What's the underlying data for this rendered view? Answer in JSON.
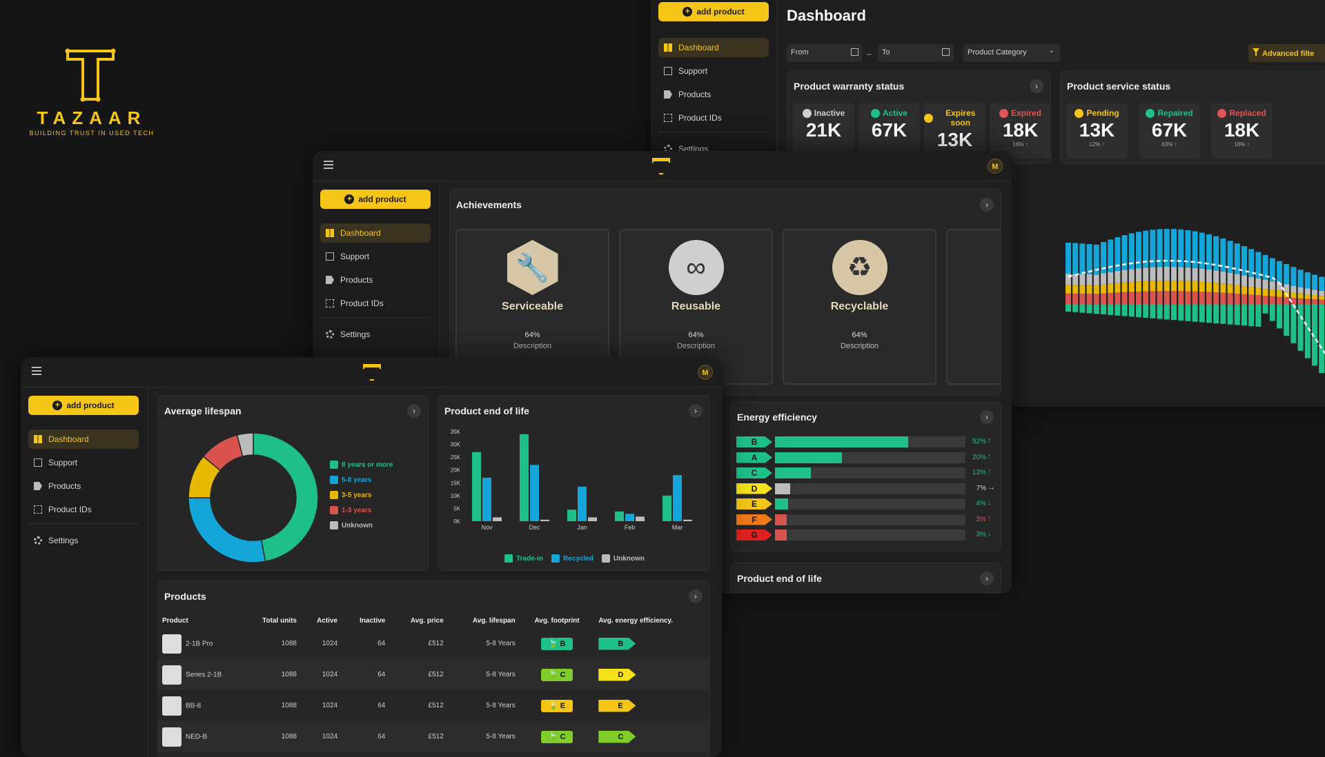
{
  "brand": {
    "name": "TAZAAR",
    "tagline": "BUILDING TRUST IN USED TECH",
    "color": "#f5c518"
  },
  "common": {
    "add_product": "add product",
    "avatar": "M",
    "nav": [
      "Dashboard",
      "Support",
      "Products",
      "Product IDs"
    ],
    "settings": "Settings"
  },
  "dash": {
    "title": "Dashboard",
    "from": "From",
    "to": "To",
    "category": "Product Category",
    "advanced": "Advanced filte"
  },
  "warranty": {
    "title": "Product warranty status",
    "stats": [
      {
        "label": "Inactive",
        "value": "21K",
        "pct": "",
        "color": "#cfcfcf"
      },
      {
        "label": "Active",
        "value": "67K",
        "pct": "",
        "color": "#1fbf8a"
      },
      {
        "label": "Expires soon",
        "value": "13K",
        "pct": "",
        "color": "#f5c518"
      },
      {
        "label": "Expired",
        "value": "18K",
        "pct": "16% ↑",
        "color": "#e05555"
      }
    ]
  },
  "service": {
    "title": "Product service status",
    "stats": [
      {
        "label": "Pending",
        "value": "13K",
        "pct": "12% ↑",
        "color": "#f5c518"
      },
      {
        "label": "Repaired",
        "value": "67K",
        "pct": "63% ↑",
        "color": "#1fbf8a"
      },
      {
        "label": "Replaced",
        "value": "18K",
        "pct": "16% ↑",
        "color": "#e05555"
      }
    ]
  },
  "achievements": {
    "title": "Achievements",
    "items": [
      {
        "title": "Serviceable",
        "pct": "64%",
        "desc": "Description",
        "icon": "wrench-icon"
      },
      {
        "title": "Reusable",
        "pct": "64%",
        "desc": "Description",
        "icon": "infinity-icon"
      },
      {
        "title": "Recyclable",
        "pct": "64%",
        "desc": "Description",
        "icon": "recycle-icon"
      }
    ]
  },
  "energy": {
    "title": "Energy efficiency",
    "rows": [
      {
        "grade": "B",
        "color": "#1fbf8a",
        "fill": 0.7,
        "pct": "52%",
        "trend": "↑",
        "pct_color": "#1fbf8a"
      },
      {
        "grade": "A",
        "color": "#1fbf8a",
        "fill": 0.35,
        "pct": "20%",
        "trend": "↑",
        "pct_color": "#1fbf8a"
      },
      {
        "grade": "C",
        "color": "#1fbf8a",
        "fill": 0.19,
        "pct": "13%",
        "trend": "↑",
        "pct_color": "#1fbf8a"
      },
      {
        "grade": "D",
        "color": "#f5e21a",
        "fill": 0.08,
        "pct": "7%",
        "trend": "→",
        "pct_color": "#cfcfcf"
      },
      {
        "grade": "E",
        "color": "#f5c518",
        "fill": 0.07,
        "pct": "4%",
        "trend": "↓",
        "pct_color": "#1fbf8a"
      },
      {
        "grade": "F",
        "color": "#f07a1a",
        "fill": 0.06,
        "pct": "3%",
        "trend": "↑",
        "pct_color": "#e05555"
      },
      {
        "grade": "G",
        "color": "#e02020",
        "fill": 0.06,
        "pct": "3%",
        "trend": "↓",
        "pct_color": "#1fbf8a"
      }
    ]
  },
  "eol_small": {
    "title": "Product end of life"
  },
  "lifespan": {
    "title": "Average lifespan",
    "legend": [
      {
        "label": "8 years or more",
        "color": "#1fbf8a",
        "value": 0.47
      },
      {
        "label": "5-8 years",
        "color": "#14a6d9",
        "value": 0.28
      },
      {
        "label": "3-5 years",
        "color": "#e6b800",
        "value": 0.11
      },
      {
        "label": "1-3 years",
        "color": "#d9534f",
        "value": 0.1
      },
      {
        "label": "Unknown",
        "color": "#bcbcbc",
        "value": 0.04
      }
    ]
  },
  "chart_data": [
    {
      "type": "bar",
      "title": "Product end of life",
      "categories": [
        "Nov",
        "Dec",
        "Jan",
        "Feb",
        "Mar"
      ],
      "ylim": [
        0,
        35000
      ],
      "yticks": [
        "0K",
        "5K",
        "10K",
        "15K",
        "20K",
        "25K",
        "30K",
        "35K"
      ],
      "series": [
        {
          "name": "Trade-in",
          "color": "#1fbf8a",
          "values": [
            27000,
            34000,
            4500,
            3800,
            10000
          ]
        },
        {
          "name": "Recycled",
          "color": "#14a6d9",
          "values": [
            17000,
            22000,
            13500,
            2900,
            18000
          ]
        },
        {
          "name": "Unknown",
          "color": "#bcbcbc",
          "values": [
            1500,
            600,
            1500,
            1800,
            600
          ]
        }
      ]
    },
    {
      "type": "pie",
      "categories": [
        "8 years or more",
        "5-8 years",
        "3-5 years",
        "1-3 years",
        "Unknown"
      ],
      "values": [
        0.47,
        0.28,
        0.11,
        0.1,
        0.04
      ]
    }
  ],
  "products": {
    "title": "Products",
    "columns": [
      "Product",
      "Total units",
      "Active",
      "Inactive",
      "Avg. price",
      "Avg. lifespan",
      "Avg. footprint",
      "Avg. energy efficiency."
    ],
    "rows": [
      {
        "name": "2-1B Pro",
        "total": "1088",
        "active": "1024",
        "inactive": "64",
        "price": "£512",
        "life": "5-8 Years",
        "fp": "B",
        "fp_color": "#1fbf8a",
        "ee": "B",
        "ee_color": "#1fbf8a"
      },
      {
        "name": "Series 2-1B",
        "total": "1088",
        "active": "1024",
        "inactive": "64",
        "price": "£512",
        "life": "5-8 Years",
        "fp": "C",
        "fp_color": "#7fcc2a",
        "ee": "D",
        "ee_color": "#f5e21a"
      },
      {
        "name": "BB-8",
        "total": "1088",
        "active": "1024",
        "inactive": "64",
        "price": "£512",
        "life": "5-8 Years",
        "fp": "E",
        "fp_color": "#f5c518",
        "ee": "E",
        "ee_color": "#f5c518"
      },
      {
        "name": "NED-B",
        "total": "1088",
        "active": "1024",
        "inactive": "64",
        "price": "£512",
        "life": "5-8 Years",
        "fp": "C",
        "fp_color": "#7fcc2a",
        "ee": "C",
        "ee_color": "#7fcc2a"
      }
    ]
  }
}
